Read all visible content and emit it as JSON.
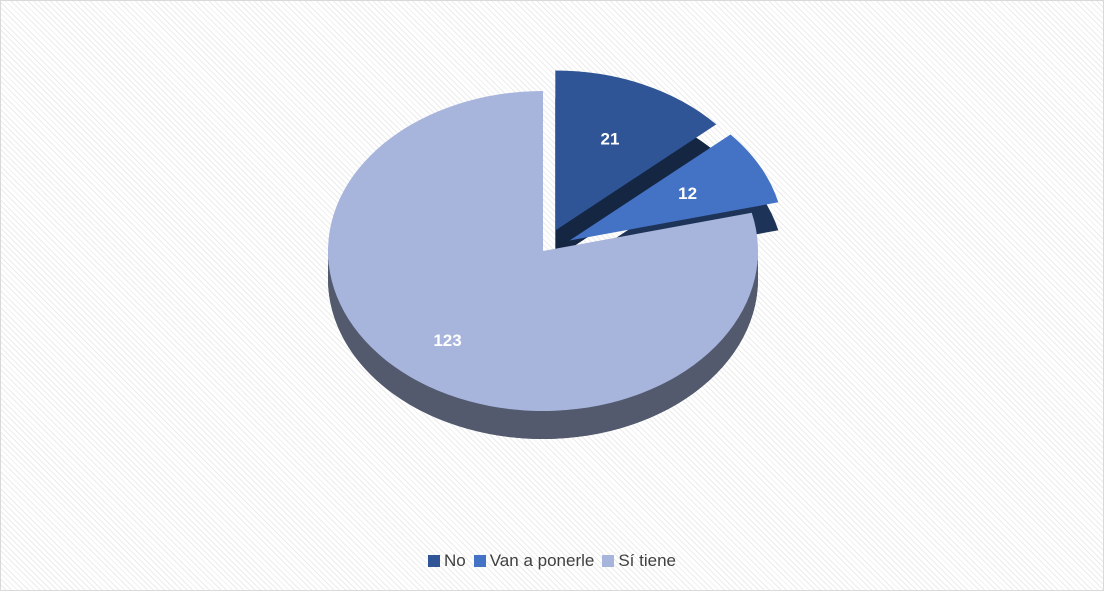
{
  "chart_data": {
    "type": "pie",
    "categories": [
      "No",
      "Van a ponerle",
      "Sí tiene"
    ],
    "values": [
      21,
      12,
      123
    ],
    "colors": [
      "#2f5597",
      "#4472c4",
      "#a7b4dc"
    ],
    "exploded": [
      true,
      true,
      false
    ],
    "legend": "bottom"
  }
}
